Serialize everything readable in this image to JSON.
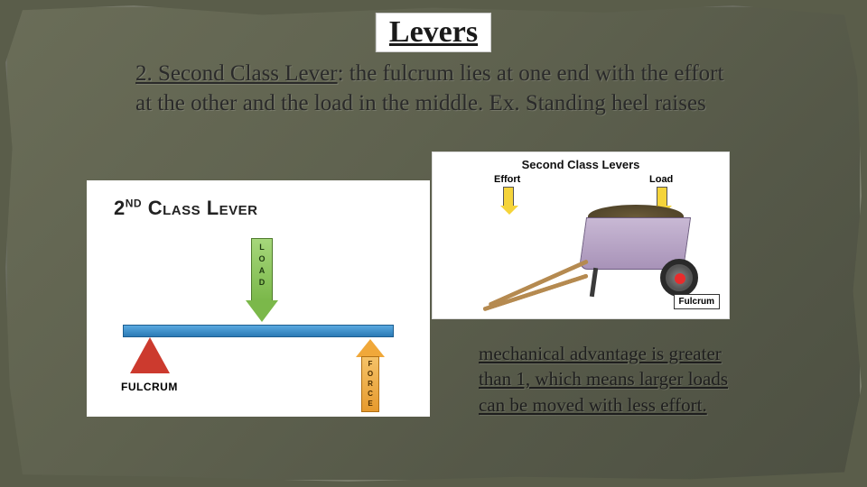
{
  "title": "Levers",
  "body": {
    "lead": "2. Second Class Lever",
    "rest": ": the fulcrum lies at one end with the effort at the other and the load in the middle.  Ex. Standing heel raises"
  },
  "diagram_left": {
    "title_html": "2ⁿᵈ Cʟᴀss Lᴇᴠᴇʀ",
    "load_letters": "L\nO\nA\nD",
    "force_letters": "F\nO\nR\nC\nE",
    "fulcrum": "FULCRUM",
    "colors": {
      "load": "#7bb84a",
      "beam": "#2b7ab5",
      "fulcrum": "#cc3a2e",
      "force": "#e69a2e",
      "bg": "#ffffff"
    }
  },
  "diagram_right": {
    "title": "Second Class Levers",
    "effort": "Effort",
    "load": "Load",
    "fulcrum": "Fulcrum",
    "colors": {
      "arrow": "#f5d43a",
      "tray": "#a893b8",
      "handle": "#b58a50",
      "wheel": "#2a2a2a",
      "dirt": "#4e4228",
      "fulcrum_dot": "#e82c2c",
      "bg": "#ffffff"
    }
  },
  "advantage": "mechanical advantage is greater than 1, which means larger loads can be moved with less effort.",
  "slide": {
    "bg": "#5a5d4a",
    "text_color": "#2a2a2a"
  }
}
